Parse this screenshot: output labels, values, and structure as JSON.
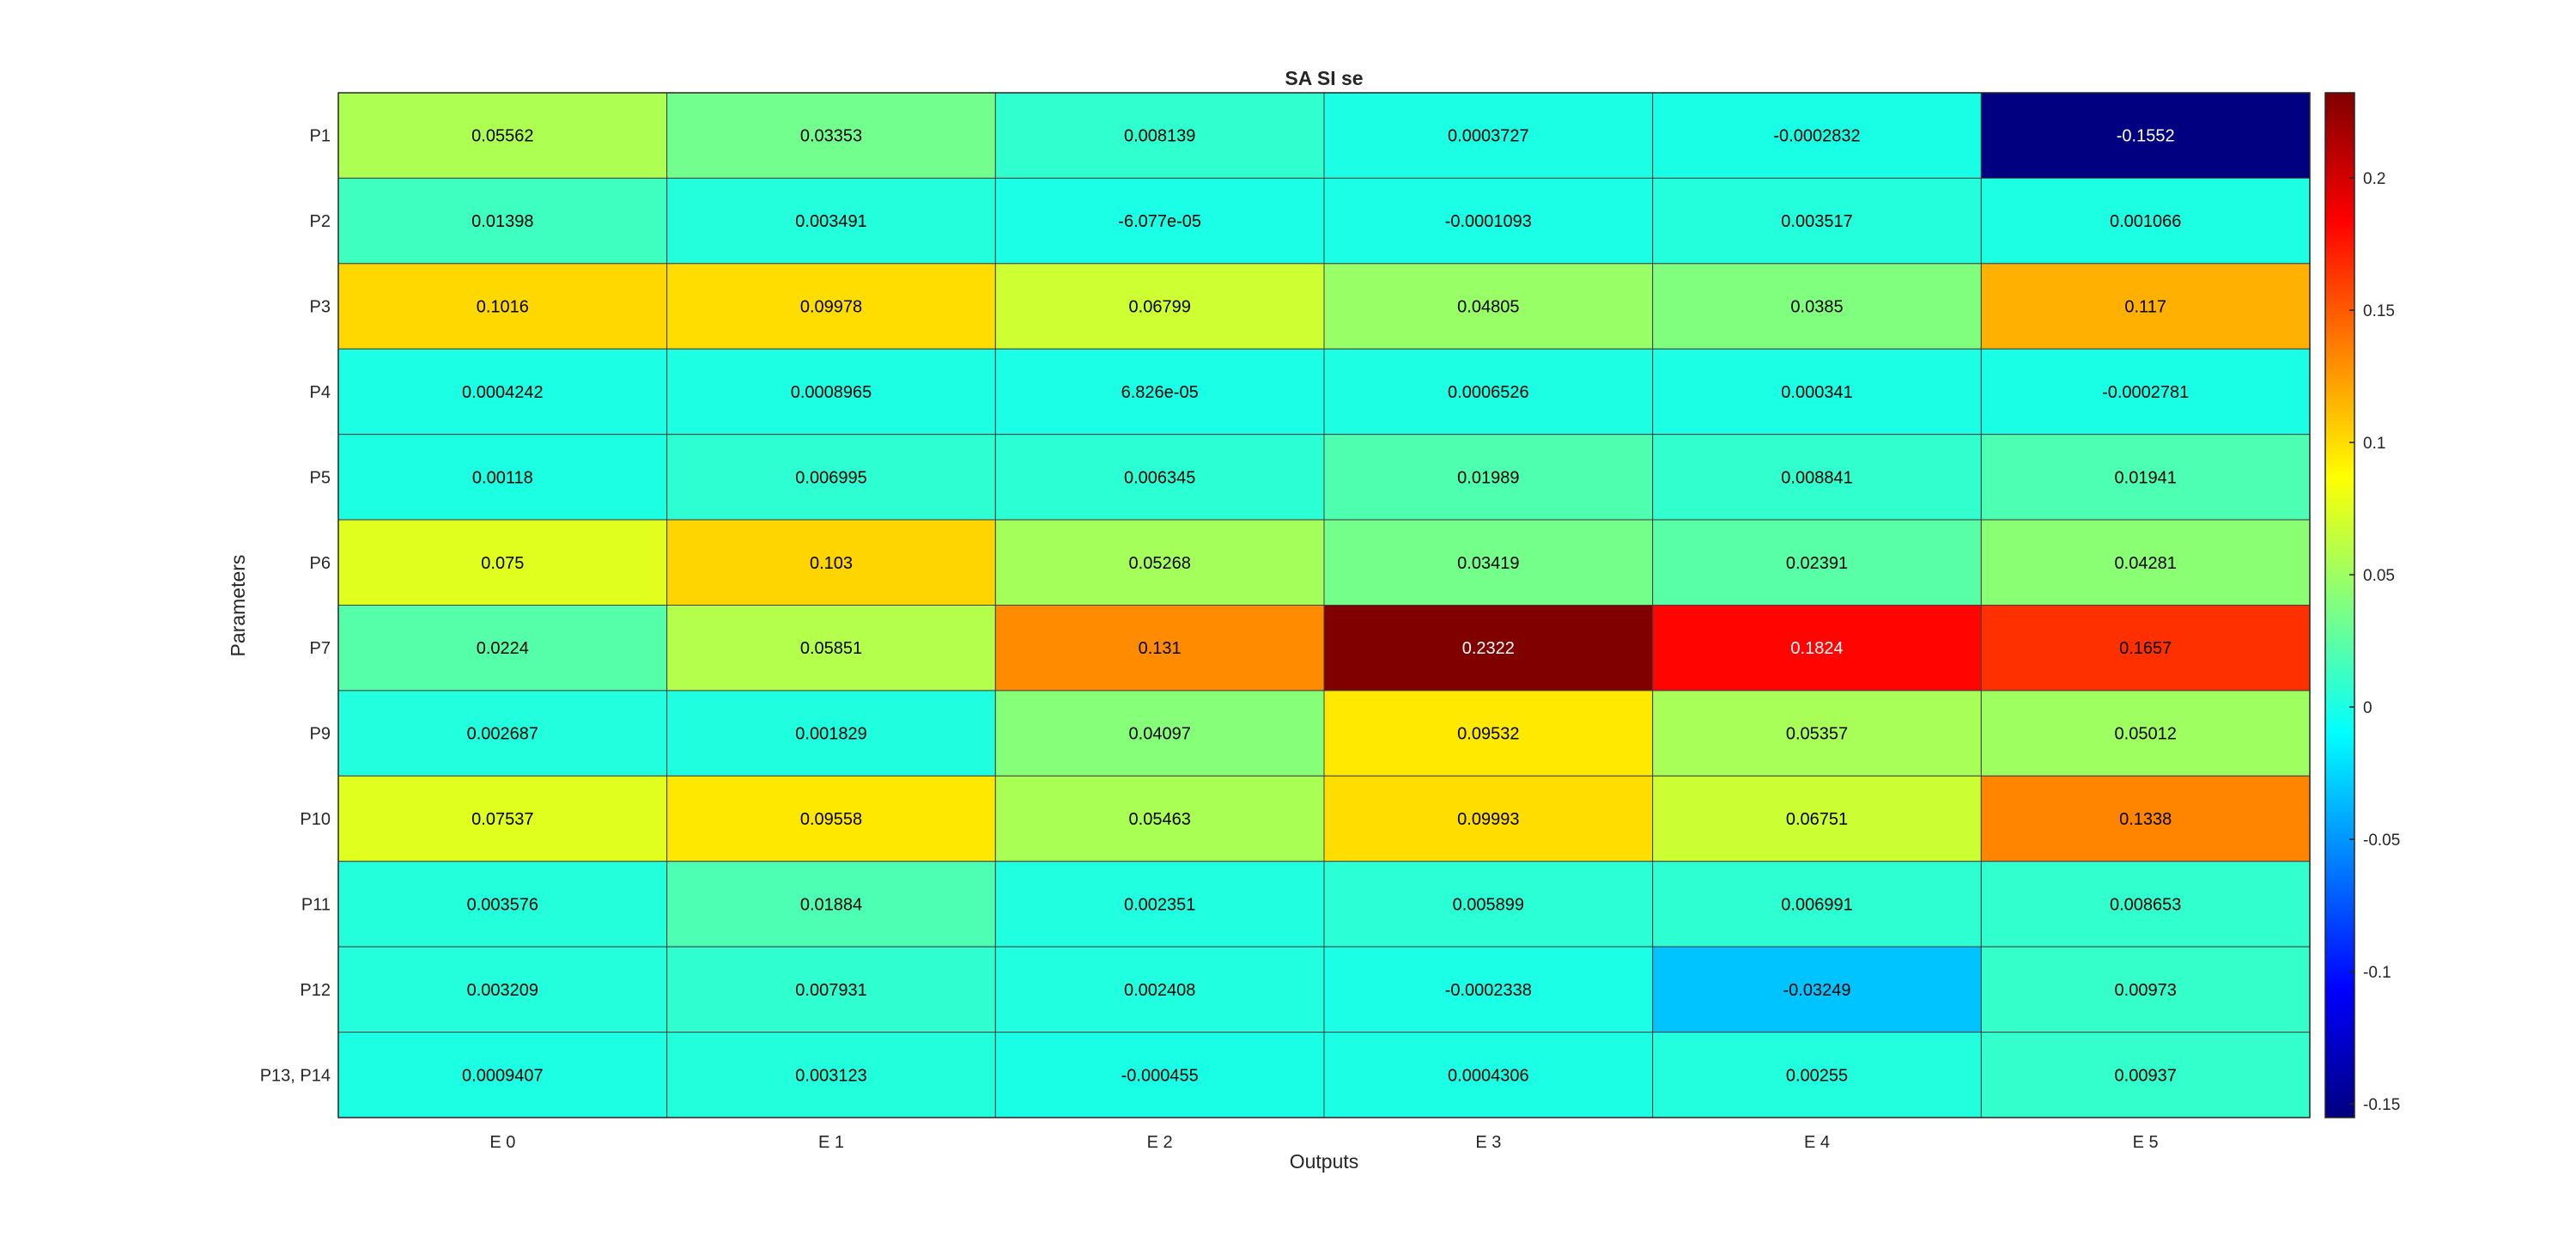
{
  "chart_data": {
    "type": "heatmap",
    "title": "SA SI se",
    "xlabel": "Outputs",
    "ylabel": "Parameters",
    "x_categories": [
      "E 0",
      "E 1",
      "E 2",
      "E 3",
      "E 4",
      "E 5"
    ],
    "y_categories": [
      "P1",
      "P2",
      "P3",
      "P4",
      "P5",
      "P6",
      "P7",
      "P9",
      "P10",
      "P11",
      "P12",
      "P13, P14"
    ],
    "values": [
      [
        0.05562,
        0.03353,
        0.008139,
        0.0003727,
        -0.0002832,
        -0.1552
      ],
      [
        0.01398,
        0.003491,
        -6.077e-05,
        -0.0001093,
        0.003517,
        0.001066
      ],
      [
        0.1016,
        0.09978,
        0.06799,
        0.04805,
        0.0385,
        0.117
      ],
      [
        0.0004242,
        0.0008965,
        6.826e-05,
        0.0006526,
        0.000341,
        -0.0002781
      ],
      [
        0.00118,
        0.006995,
        0.006345,
        0.01989,
        0.008841,
        0.01941
      ],
      [
        0.075,
        0.103,
        0.05268,
        0.03419,
        0.02391,
        0.04281
      ],
      [
        0.0224,
        0.05851,
        0.131,
        0.2322,
        0.1824,
        0.1657
      ],
      [
        0.002687,
        0.001829,
        0.04097,
        0.09532,
        0.05357,
        0.05012
      ],
      [
        0.07537,
        0.09558,
        0.05463,
        0.09993,
        0.06751,
        0.1338
      ],
      [
        0.003576,
        0.01884,
        0.002351,
        0.005899,
        0.006991,
        0.008653
      ],
      [
        0.003209,
        0.007931,
        0.002408,
        -0.0002338,
        -0.03249,
        0.00973
      ],
      [
        0.0009407,
        0.003123,
        -0.000455,
        0.0004306,
        0.00255,
        0.00937
      ]
    ],
    "cell_labels": [
      [
        "0.05562",
        "0.03353",
        "0.008139",
        "0.0003727",
        "-0.0002832",
        "-0.1552"
      ],
      [
        "0.01398",
        "0.003491",
        "-6.077e-05",
        "-0.0001093",
        "0.003517",
        "0.001066"
      ],
      [
        "0.1016",
        "0.09978",
        "0.06799",
        "0.04805",
        "0.0385",
        "0.117"
      ],
      [
        "0.0004242",
        "0.0008965",
        "6.826e-05",
        "0.0006526",
        "0.000341",
        "-0.0002781"
      ],
      [
        "0.00118",
        "0.006995",
        "0.006345",
        "0.01989",
        "0.008841",
        "0.01941"
      ],
      [
        "0.075",
        "0.103",
        "0.05268",
        "0.03419",
        "0.02391",
        "0.04281"
      ],
      [
        "0.0224",
        "0.05851",
        "0.131",
        "0.2322",
        "0.1824",
        "0.1657"
      ],
      [
        "0.002687",
        "0.001829",
        "0.04097",
        "0.09532",
        "0.05357",
        "0.05012"
      ],
      [
        "0.07537",
        "0.09558",
        "0.05463",
        "0.09993",
        "0.06751",
        "0.1338"
      ],
      [
        "0.003576",
        "0.01884",
        "0.002351",
        "0.005899",
        "0.006991",
        "0.008653"
      ],
      [
        "0.003209",
        "0.007931",
        "0.002408",
        "-0.0002338",
        "-0.03249",
        "0.00973"
      ],
      [
        "0.0009407",
        "0.003123",
        "-0.000455",
        "0.0004306",
        "0.00255",
        "0.00937"
      ]
    ],
    "colormap": "jet",
    "color_limits": [
      -0.1552,
      0.2322
    ],
    "colorbar_ticks": [
      -0.15,
      -0.1,
      -0.05,
      0,
      0.05,
      0.1,
      0.15,
      0.2
    ],
    "colorbar_tick_labels": [
      "-0.15",
      "-0.1",
      "-0.05",
      "0",
      "0.05",
      "0.1",
      "0.15",
      "0.2"
    ],
    "legend": "colorbar-right"
  }
}
